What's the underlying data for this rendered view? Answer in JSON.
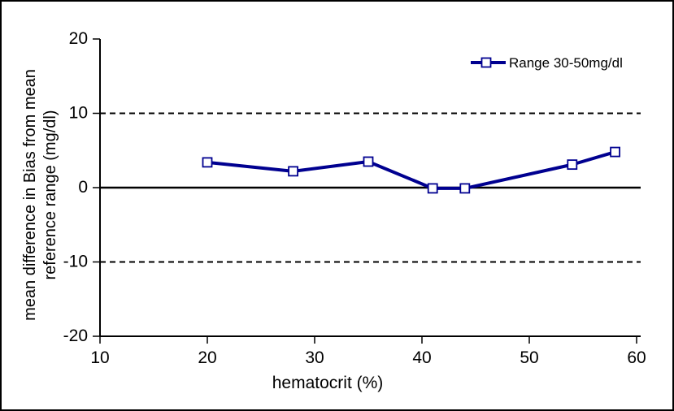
{
  "figure": {
    "background": "#ffffff",
    "border_color": "#000000",
    "axis_color": "#000000"
  },
  "chart_data": {
    "type": "line",
    "title": "",
    "xlabel": "hematocrit (%)",
    "ylabel": "mean difference in Bias from mean reference range (mg/dl)",
    "ylabel_lines": [
      "mean difference in Bias from mean",
      "reference range (mg/dl)"
    ],
    "xlim": [
      10,
      60
    ],
    "ylim": [
      -20,
      20
    ],
    "xticks": [
      10,
      20,
      30,
      40,
      50,
      60
    ],
    "yticks": [
      20,
      10,
      0,
      -10,
      -20
    ],
    "grid": false,
    "reference_lines": {
      "solid_y": [
        0
      ],
      "dashed_y": [
        10,
        -10
      ]
    },
    "legend_position": "top-right-inside",
    "series": [
      {
        "name": "Range 30-50mg/dl",
        "color": "#000090",
        "marker": "open-square",
        "marker_fill": "#ffffff",
        "x": [
          20,
          28,
          35,
          41,
          44,
          54,
          58
        ],
        "y": [
          3.4,
          2.2,
          3.5,
          -0.1,
          -0.1,
          3.1,
          4.8
        ]
      }
    ]
  }
}
